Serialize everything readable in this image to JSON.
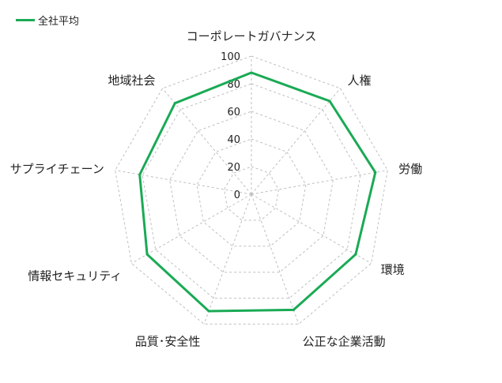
{
  "chart_data": {
    "type": "radar",
    "categories": [
      "コーポレートガバナンス",
      "人権",
      "労働",
      "環境",
      "公正な企業活動",
      "品質･安全性",
      "情報セキュリティ",
      "サプライチェーン",
      "地域社会"
    ],
    "tick_labels": [
      "0",
      "20",
      "40",
      "60",
      "80",
      "100"
    ],
    "ylim": [
      0,
      100
    ],
    "grid": true,
    "legend_position": "top-left",
    "series": [
      {
        "name": "全社平均",
        "color": "#1aaa55",
        "values": [
          88,
          88,
          91,
          87,
          89,
          90,
          87,
          82,
          86
        ]
      }
    ]
  }
}
